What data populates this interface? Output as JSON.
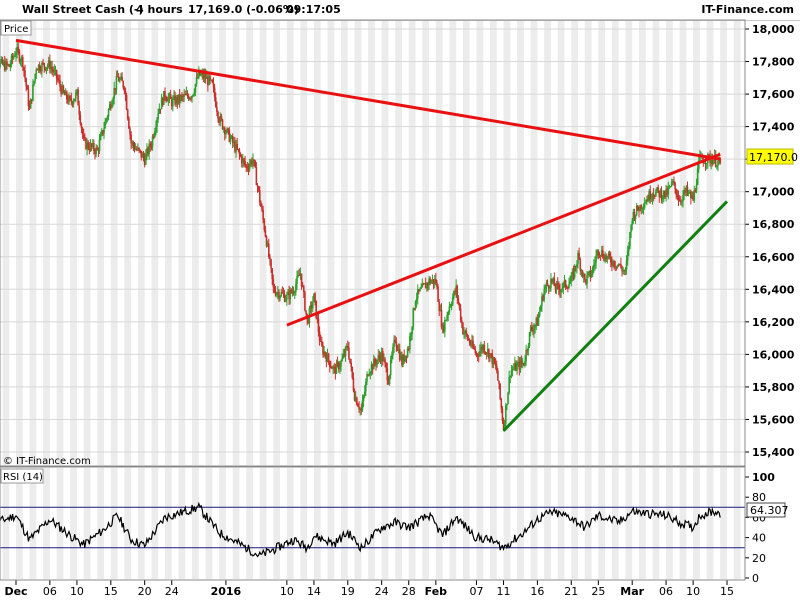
{
  "header": {
    "instrument": "Wall Street Cash (-)",
    "timeframe": "4 hours",
    "quote": "17,169.0 (-0.06%)",
    "time": "09:17:05",
    "brand": "IT-Finance.com"
  },
  "price_panel": {
    "label": "Price",
    "watermark": "© IT-Finance.com",
    "last_price_label": "17,170.0"
  },
  "rsi_panel": {
    "label": "RSI (14)",
    "last_value_label": "64.307"
  },
  "colors": {
    "up": "#2e9e2e",
    "down": "#c8302b",
    "trendline_red": "#e81010",
    "trendline_green": "#108010",
    "rsi_line": "#000000",
    "rsi_level": "#1a1a7a"
  },
  "chart_data": [
    {
      "type": "candlestick",
      "title": "Wall Street Cash (-)",
      "ylabel": "Price",
      "ylim": [
        15400,
        18100
      ],
      "yticks": [
        15400,
        15600,
        15800,
        16000,
        16200,
        16400,
        16600,
        16800,
        17000,
        17200,
        17400,
        17600,
        17800,
        18000
      ],
      "ytick_labels": [
        "15,400",
        "15,600",
        "15,800",
        "16,000",
        "16,200",
        "16,400",
        "16,600",
        "16,800",
        "17,000",
        "17,200",
        "17,400",
        "17,600",
        "17,800",
        "18,000"
      ],
      "x_tick_labels": [
        {
          "date": "2015-12-01",
          "label": "Dec",
          "bold": true
        },
        {
          "date": "2015-12-06",
          "label": "06",
          "bold": false
        },
        {
          "date": "2015-12-10",
          "label": "10",
          "bold": false
        },
        {
          "date": "2015-12-15",
          "label": "15",
          "bold": false
        },
        {
          "date": "2015-12-20",
          "label": "20",
          "bold": false
        },
        {
          "date": "2015-12-24",
          "label": "24",
          "bold": false
        },
        {
          "date": "2016-01-01",
          "label": "2016",
          "bold": true
        },
        {
          "date": "2016-01-10",
          "label": "10",
          "bold": false
        },
        {
          "date": "2016-01-14",
          "label": "14",
          "bold": false
        },
        {
          "date": "2016-01-19",
          "label": "19",
          "bold": false
        },
        {
          "date": "2016-01-24",
          "label": "24",
          "bold": false
        },
        {
          "date": "2016-01-28",
          "label": "28",
          "bold": false
        },
        {
          "date": "2016-02-01",
          "label": "Feb",
          "bold": true
        },
        {
          "date": "2016-02-07",
          "label": "07",
          "bold": false
        },
        {
          "date": "2016-02-11",
          "label": "11",
          "bold": false
        },
        {
          "date": "2016-02-16",
          "label": "16",
          "bold": false
        },
        {
          "date": "2016-02-21",
          "label": "21",
          "bold": false
        },
        {
          "date": "2016-02-25",
          "label": "25",
          "bold": false
        },
        {
          "date": "2016-03-01",
          "label": "Mar",
          "bold": true
        },
        {
          "date": "2016-03-06",
          "label": "06",
          "bold": false
        },
        {
          "date": "2016-03-10",
          "label": "10",
          "bold": false
        },
        {
          "date": "2016-03-15",
          "label": "15",
          "bold": false
        }
      ],
      "close_path": [
        [
          "2015-11-27",
          17800
        ],
        [
          "2015-11-30",
          17770
        ],
        [
          "2015-12-01",
          17870
        ],
        [
          "2015-12-02",
          17800
        ],
        [
          "2015-12-03",
          17500
        ],
        [
          "2015-12-04",
          17770
        ],
        [
          "2015-12-06",
          17780
        ],
        [
          "2015-12-07",
          17700
        ],
        [
          "2015-12-08",
          17600
        ],
        [
          "2015-12-09",
          17550
        ],
        [
          "2015-12-10",
          17600
        ],
        [
          "2015-12-11",
          17300
        ],
        [
          "2015-12-13",
          17250
        ],
        [
          "2015-12-14",
          17400
        ],
        [
          "2015-12-15",
          17550
        ],
        [
          "2015-12-16",
          17700
        ],
        [
          "2015-12-17",
          17650
        ],
        [
          "2015-12-18",
          17300
        ],
        [
          "2015-12-20",
          17200
        ],
        [
          "2015-12-21",
          17300
        ],
        [
          "2015-12-22",
          17500
        ],
        [
          "2015-12-23",
          17600
        ],
        [
          "2015-12-24",
          17550
        ],
        [
          "2015-12-27",
          17600
        ],
        [
          "2015-12-28",
          17720
        ],
        [
          "2015-12-29",
          17700
        ],
        [
          "2015-12-30",
          17650
        ],
        [
          "2015-12-31",
          17450
        ],
        [
          "2016-01-04",
          17150
        ],
        [
          "2016-01-05",
          17200
        ],
        [
          "2016-01-06",
          16950
        ],
        [
          "2016-01-07",
          16700
        ],
        [
          "2016-01-08",
          16400
        ],
        [
          "2016-01-10",
          16350
        ],
        [
          "2016-01-11",
          16400
        ],
        [
          "2016-01-12",
          16500
        ],
        [
          "2016-01-13",
          16200
        ],
        [
          "2016-01-14",
          16350
        ],
        [
          "2016-01-15",
          16050
        ],
        [
          "2016-01-17",
          15900
        ],
        [
          "2016-01-18",
          15950
        ],
        [
          "2016-01-19",
          16050
        ],
        [
          "2016-01-20",
          15750
        ],
        [
          "2016-01-21",
          15650
        ],
        [
          "2016-01-22",
          15900
        ],
        [
          "2016-01-24",
          16000
        ],
        [
          "2016-01-25",
          15850
        ],
        [
          "2016-01-26",
          16100
        ],
        [
          "2016-01-27",
          15950
        ],
        [
          "2016-01-28",
          16050
        ],
        [
          "2016-01-29",
          16350
        ],
        [
          "2016-01-31",
          16450
        ],
        [
          "2016-02-01",
          16450
        ],
        [
          "2016-02-02",
          16150
        ],
        [
          "2016-02-03",
          16300
        ],
        [
          "2016-02-04",
          16400
        ],
        [
          "2016-02-05",
          16150
        ],
        [
          "2016-02-07",
          16000
        ],
        [
          "2016-02-08",
          16050
        ],
        [
          "2016-02-09",
          16000
        ],
        [
          "2016-02-10",
          15900
        ],
        [
          "2016-02-11",
          15550
        ],
        [
          "2016-02-12",
          15900
        ],
        [
          "2016-02-14",
          15950
        ],
        [
          "2016-02-15",
          16150
        ],
        [
          "2016-02-16",
          16200
        ],
        [
          "2016-02-17",
          16400
        ],
        [
          "2016-02-18",
          16450
        ],
        [
          "2016-02-19",
          16400
        ],
        [
          "2016-02-21",
          16450
        ],
        [
          "2016-02-22",
          16600
        ],
        [
          "2016-02-23",
          16450
        ],
        [
          "2016-02-24",
          16500
        ],
        [
          "2016-02-25",
          16650
        ],
        [
          "2016-02-26",
          16600
        ],
        [
          "2016-02-28",
          16550
        ],
        [
          "2016-02-29",
          16500
        ],
        [
          "2016-03-01",
          16850
        ],
        [
          "2016-03-02",
          16900
        ],
        [
          "2016-03-03",
          16950
        ],
        [
          "2016-03-04",
          17000
        ],
        [
          "2016-03-06",
          16980
        ],
        [
          "2016-03-07",
          17050
        ],
        [
          "2016-03-08",
          16950
        ],
        [
          "2016-03-09",
          17000
        ],
        [
          "2016-03-10",
          16950
        ],
        [
          "2016-03-11",
          17200
        ],
        [
          "2016-03-13",
          17200
        ],
        [
          "2016-03-14",
          17170
        ]
      ],
      "trendlines": [
        {
          "color": "red",
          "from": [
            "2015-12-01",
            17930
          ],
          "to": [
            "2016-03-14",
            17200
          ]
        },
        {
          "color": "red",
          "from": [
            "2016-01-10",
            16180
          ],
          "to": [
            "2016-03-14",
            17230
          ]
        },
        {
          "color": "green",
          "from": [
            "2016-02-11",
            15530
          ],
          "to": [
            "2016-03-15",
            16940
          ]
        }
      ]
    },
    {
      "type": "line",
      "title": "RSI (14)",
      "ylim": [
        0,
        100
      ],
      "yticks": [
        0,
        20,
        40,
        60,
        80,
        100
      ],
      "levels": [
        30,
        70
      ],
      "series": [
        {
          "name": "RSI (14)",
          "values": [
            [
              "2015-11-27",
              52
            ],
            [
              "2015-12-01",
              62
            ],
            [
              "2015-12-03",
              38
            ],
            [
              "2015-12-06",
              58
            ],
            [
              "2015-12-09",
              42
            ],
            [
              "2015-12-11",
              33
            ],
            [
              "2015-12-14",
              48
            ],
            [
              "2015-12-16",
              62
            ],
            [
              "2015-12-18",
              38
            ],
            [
              "2015-12-20",
              32
            ],
            [
              "2015-12-23",
              60
            ],
            [
              "2015-12-28",
              70
            ],
            [
              "2015-12-31",
              45
            ],
            [
              "2016-01-04",
              30
            ],
            [
              "2016-01-06",
              22
            ],
            [
              "2016-01-08",
              28
            ],
            [
              "2016-01-11",
              38
            ],
            [
              "2016-01-13",
              30
            ],
            [
              "2016-01-14",
              42
            ],
            [
              "2016-01-17",
              34
            ],
            [
              "2016-01-19",
              45
            ],
            [
              "2016-01-21",
              30
            ],
            [
              "2016-01-24",
              50
            ],
            [
              "2016-01-26",
              55
            ],
            [
              "2016-01-28",
              50
            ],
            [
              "2016-01-31",
              62
            ],
            [
              "2016-02-02",
              42
            ],
            [
              "2016-02-04",
              60
            ],
            [
              "2016-02-07",
              40
            ],
            [
              "2016-02-09",
              38
            ],
            [
              "2016-02-11",
              30
            ],
            [
              "2016-02-14",
              45
            ],
            [
              "2016-02-16",
              58
            ],
            [
              "2016-02-18",
              65
            ],
            [
              "2016-02-21",
              60
            ],
            [
              "2016-02-23",
              50
            ],
            [
              "2016-02-25",
              62
            ],
            [
              "2016-02-28",
              55
            ],
            [
              "2016-03-01",
              66
            ],
            [
              "2016-03-03",
              64
            ],
            [
              "2016-03-06",
              62
            ],
            [
              "2016-03-08",
              55
            ],
            [
              "2016-03-10",
              50
            ],
            [
              "2016-03-11",
              62
            ],
            [
              "2016-03-13",
              66
            ],
            [
              "2016-03-14",
              64.307
            ]
          ]
        }
      ]
    }
  ]
}
